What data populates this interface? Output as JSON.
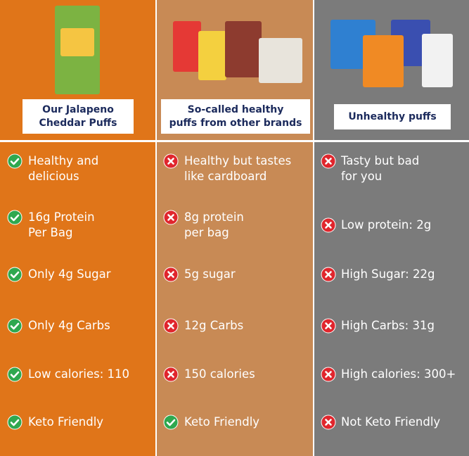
{
  "columns": [
    {
      "header": {
        "lines": [
          "Our Jalapeno",
          "Cheddar Puffs"
        ]
      },
      "rows": [
        {
          "lines": [
            "Healthy and",
            "delicious"
          ],
          "status": "check"
        },
        {
          "lines": [
            "16g Protein",
            "Per Bag"
          ],
          "status": "check"
        },
        {
          "lines": [
            "Only 4g Sugar"
          ],
          "status": "check"
        },
        {
          "lines": [
            "Only 4g Carbs"
          ],
          "status": "check"
        },
        {
          "lines": [
            "Low calories: 110"
          ],
          "status": "check"
        },
        {
          "lines": [
            "Keto Friendly"
          ],
          "status": "check"
        }
      ]
    },
    {
      "header": {
        "lines": [
          "So-called healthy",
          "puffs from other brands"
        ]
      },
      "rows": [
        {
          "lines": [
            "Healthy but tastes",
            "like cardboard"
          ],
          "status": "cross"
        },
        {
          "lines": [
            "8g protein",
            "per bag"
          ],
          "status": "cross"
        },
        {
          "lines": [
            "5g sugar"
          ],
          "status": "cross"
        },
        {
          "lines": [
            "12g Carbs"
          ],
          "status": "cross"
        },
        {
          "lines": [
            "150 calories"
          ],
          "status": "cross"
        },
        {
          "lines": [
            "Keto Friendly"
          ],
          "status": "check"
        }
      ]
    },
    {
      "header": {
        "lines": [
          "Unhealthy puffs"
        ]
      },
      "rows": [
        {
          "lines": [
            "Tasty but bad",
            "for you"
          ],
          "status": "cross"
        },
        {
          "lines": [
            "Low protein: 2g"
          ],
          "status": "cross"
        },
        {
          "lines": [
            "High Sugar: 22g"
          ],
          "status": "cross"
        },
        {
          "lines": [
            "High Carbs: 31g"
          ],
          "status": "cross"
        },
        {
          "lines": [
            "High calories: 300+"
          ],
          "status": "cross"
        },
        {
          "lines": [
            "Not Keto Friendly"
          ],
          "status": "cross"
        }
      ]
    }
  ]
}
